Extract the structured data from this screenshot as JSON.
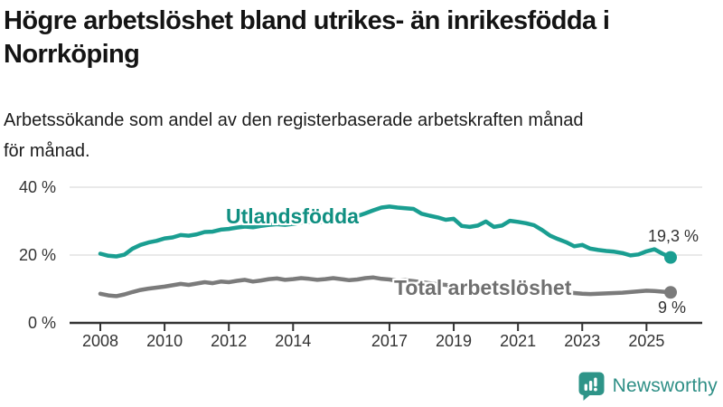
{
  "header": {
    "title": "Högre arbetslöshet bland utrikes- än inrikesfödda i Norrköping",
    "title_lines": [
      "Högre arbetslöshet bland utrikes- än inrikesfödda i",
      "Norrköping"
    ],
    "subtitle": "Arbetssökande som andel av den registerbaserade arbetskraften månad för månad.",
    "subtitle_lines": [
      "Arbetssökande som andel av den registerbaserade arbetskraften månad",
      "för månad."
    ]
  },
  "chart_data": {
    "type": "line",
    "title": "Högre arbetslöshet bland utrikes- än inrikesfödda i Norrköping",
    "subtitle": "Arbetssökande som andel av den registerbaserade arbetskraften månad för månad.",
    "xlabel": "",
    "ylabel": "",
    "x_unit": "decimal_year",
    "xlim": [
      2007.0,
      2026.7
    ],
    "ylim": [
      0,
      42
    ],
    "grid": "horizontal",
    "grid_color": "#dcdcdc",
    "axis_color": "#333333",
    "y_ticks": [
      0,
      20,
      40
    ],
    "y_tick_labels": [
      "0 %",
      "20 %",
      "40 %"
    ],
    "x_ticks": [
      2008,
      2010,
      2012,
      2014,
      2017,
      2019,
      2021,
      2023,
      2025
    ],
    "x_tick_labels": [
      "2008",
      "2010",
      "2012",
      "2014",
      "2017",
      "2019",
      "2021",
      "2023",
      "2025"
    ],
    "x": [
      2008,
      2008.25,
      2008.5,
      2008.75,
      2009,
      2009.25,
      2009.5,
      2009.75,
      2010,
      2010.25,
      2010.5,
      2010.75,
      2011,
      2011.25,
      2011.5,
      2011.75,
      2012,
      2012.25,
      2012.5,
      2012.75,
      2013,
      2013.25,
      2013.5,
      2013.75,
      2014,
      2014.25,
      2014.5,
      2014.75,
      2015,
      2015.25,
      2015.5,
      2015.75,
      2016,
      2016.25,
      2016.5,
      2016.75,
      2017,
      2017.25,
      2017.5,
      2017.75,
      2018,
      2018.25,
      2018.5,
      2018.75,
      2019,
      2019.25,
      2019.5,
      2019.75,
      2020,
      2020.25,
      2020.5,
      2020.75,
      2021,
      2021.25,
      2021.5,
      2021.75,
      2022,
      2022.25,
      2022.5,
      2022.75,
      2023,
      2023.25,
      2023.5,
      2023.75,
      2024,
      2024.25,
      2024.5,
      2024.75,
      2025,
      2025.25,
      2025.5,
      2025.75
    ],
    "series": [
      {
        "name": "Utlandsfödda",
        "color": "#1a9e91",
        "label_color": "#0f8f81",
        "end_label": "19,3 %",
        "end_value": 19.3,
        "values": [
          20.4,
          19.8,
          19.6,
          20.1,
          21.9,
          23.0,
          23.7,
          24.2,
          24.9,
          25.2,
          25.9,
          25.7,
          26.1,
          26.8,
          26.9,
          27.5,
          27.7,
          28.1,
          28.4,
          28.2,
          28.6,
          28.9,
          29.1,
          28.9,
          29.2,
          29.6,
          29.8,
          29.6,
          29.9,
          30.2,
          30.4,
          30.8,
          31.5,
          32.3,
          33.2,
          34.0,
          34.3,
          34.0,
          33.8,
          33.6,
          32.2,
          31.6,
          31.1,
          30.4,
          30.7,
          28.6,
          28.3,
          28.7,
          29.9,
          28.3,
          28.7,
          30.1,
          29.8,
          29.4,
          28.8,
          27.4,
          25.7,
          24.7,
          23.8,
          22.6,
          23.0,
          21.9,
          21.5,
          21.2,
          21.0,
          20.6,
          19.9,
          20.2,
          21.1,
          21.7,
          20.4,
          19.3
        ]
      },
      {
        "name": "Total arbetslöshet",
        "color": "#7b7b7b",
        "label_color": "#707070",
        "end_label": "9 %",
        "end_value": 9.0,
        "values": [
          8.6,
          8.1,
          7.9,
          8.4,
          9.1,
          9.7,
          10.1,
          10.4,
          10.7,
          11.1,
          11.5,
          11.2,
          11.6,
          12.0,
          11.7,
          12.2,
          12.0,
          12.4,
          12.7,
          12.2,
          12.5,
          12.9,
          13.1,
          12.7,
          12.9,
          13.2,
          13.0,
          12.7,
          12.9,
          13.2,
          12.9,
          12.6,
          12.8,
          13.2,
          13.4,
          13.0,
          12.8,
          12.4,
          12.6,
          12.3,
          12.0,
          11.7,
          11.4,
          11.2,
          10.9,
          10.7,
          10.8,
          11.0,
          11.3,
          11.6,
          11.4,
          11.2,
          11.0,
          10.7,
          10.3,
          10.0,
          9.6,
          9.3,
          9.0,
          8.8,
          8.6,
          8.5,
          8.6,
          8.7,
          8.8,
          8.9,
          9.1,
          9.3,
          9.5,
          9.4,
          9.2,
          9.0
        ]
      }
    ]
  },
  "footer": {
    "brand": "Newsworthy",
    "brand_color": "#2e8f86"
  }
}
